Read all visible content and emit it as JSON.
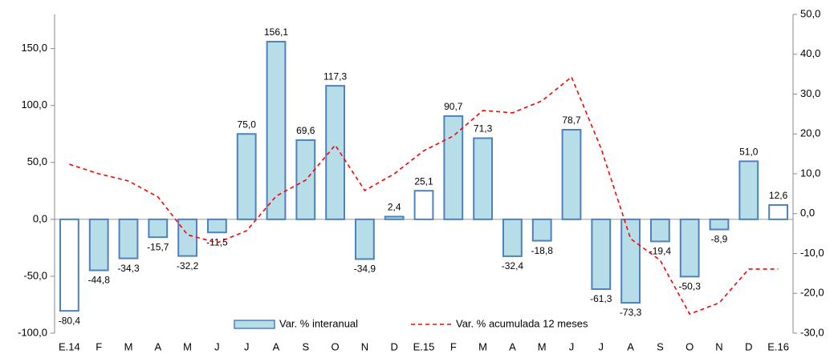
{
  "chart_data": {
    "type": "bar-line",
    "categories": [
      "E.14",
      "F",
      "M",
      "A",
      "M",
      "J",
      "J",
      "A",
      "S",
      "O",
      "N",
      "D",
      "E.15",
      "F",
      "M",
      "A",
      "M",
      "J",
      "J",
      "A",
      "S",
      "O",
      "N",
      "D",
      "E.16"
    ],
    "series": [
      {
        "name": "Var. % interanual",
        "type": "bar",
        "color": "#b7dde8",
        "border": "#4f81bd",
        "colors": [
          "#ffffff",
          "#b7dde8",
          "#b7dde8",
          "#b7dde8",
          "#b7dde8",
          "#b7dde8",
          "#b7dde8",
          "#b7dde8",
          "#b7dde8",
          "#b7dde8",
          "#b7dde8",
          "#b7dde8",
          "#ffffff",
          "#b7dde8",
          "#b7dde8",
          "#b7dde8",
          "#b7dde8",
          "#b7dde8",
          "#b7dde8",
          "#b7dde8",
          "#b7dde8",
          "#b7dde8",
          "#b7dde8",
          "#b7dde8",
          "#ffffff"
        ],
        "values": [
          -80.4,
          -44.8,
          -34.3,
          -15.7,
          -32.2,
          -11.5,
          75.0,
          156.1,
          69.6,
          117.3,
          -34.9,
          2.4,
          25.1,
          90.7,
          71.3,
          -32.4,
          -18.8,
          78.7,
          -61.3,
          -73.3,
          -19.4,
          -50.3,
          -8.9,
          51.0,
          12.6
        ],
        "value_labels": [
          "-80,4",
          "-44,8",
          "-34,3",
          "-15,7",
          "-32,2",
          "-11,5",
          "75,0",
          "156,1",
          "69,6",
          "117,3",
          "-34,9",
          "2,4",
          "25,1",
          "90,7",
          "71,3",
          "-32,4",
          "-18,8",
          "78,7",
          "-61,3",
          "-73,3",
          "-19,4",
          "-50,3",
          "-8,9",
          "51,0",
          "12,6"
        ]
      },
      {
        "name": "Var. % acumulada 12 meses",
        "type": "line",
        "axis": "y2",
        "color": "#ff0000",
        "dashed": true,
        "values": [
          12.4,
          10.0,
          8.2,
          4.2,
          -5.3,
          -7.3,
          -4.3,
          4.4,
          8.4,
          17.2,
          5.8,
          10.0,
          15.8,
          19.5,
          25.9,
          25.3,
          28.3,
          34.3,
          16.4,
          -6.3,
          -11.7,
          -25.2,
          -22.4,
          -13.9,
          -13.9
        ]
      }
    ],
    "ylim": [
      -100,
      180
    ],
    "yticks": [
      {
        "value": -100,
        "label": "-100,0"
      },
      {
        "value": -50,
        "label": "-50,0"
      },
      {
        "value": 0,
        "label": "0,0"
      },
      {
        "value": 50,
        "label": "50,0"
      },
      {
        "value": 100,
        "label": "100,0"
      },
      {
        "value": 150,
        "label": "150,0"
      }
    ],
    "y2lim": [
      -30,
      50
    ],
    "y2ticks": [
      {
        "value": -30,
        "label": "-30,0"
      },
      {
        "value": -20,
        "label": "-20,0"
      },
      {
        "value": -10,
        "label": "-10,0"
      },
      {
        "value": 0,
        "label": "0,0"
      },
      {
        "value": 10,
        "label": "10,0"
      },
      {
        "value": 20,
        "label": "20,0"
      },
      {
        "value": 30,
        "label": "30,0"
      },
      {
        "value": 40,
        "label": "40,0"
      },
      {
        "value": 50,
        "label": "50,0"
      }
    ],
    "legend": "bottom"
  }
}
